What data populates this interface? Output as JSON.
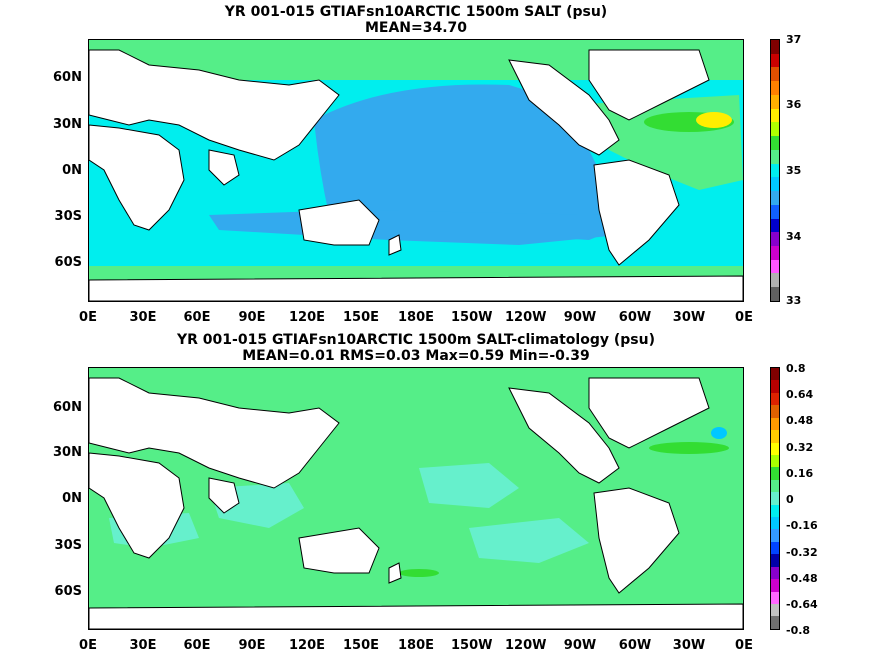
{
  "panels": [
    {
      "title_line1": "YR 001-015 GTIAFsn10ARCTIC 1500m SALT (psu)",
      "title_line2": "MEAN=34.70",
      "colorbar_labels": [
        "37",
        "36",
        "35",
        "34",
        "33"
      ],
      "colorbar_colors": [
        "#800000",
        "#cc0000",
        "#e05000",
        "#ff8000",
        "#ffb000",
        "#ffee00",
        "#b0ff00",
        "#33dd33",
        "#55ee88",
        "#00eeee",
        "#00c8ff",
        "#33aaee",
        "#1060ff",
        "#0000cc",
        "#8800cc",
        "#cc00cc",
        "#ff55ff",
        "#b0b0b0",
        "#606060"
      ]
    },
    {
      "title_line1": "YR 001-015 GTIAFsn10ARCTIC 1500m SALT-climatology (psu)",
      "title_line2": "MEAN=0.01   RMS=0.03   Max=0.59   Min=-0.39",
      "colorbar_labels": [
        "0.8",
        "0.64",
        "0.48",
        "0.32",
        "0.16",
        "0",
        "-0.16",
        "-0.32",
        "-0.48",
        "-0.64",
        "-0.8"
      ],
      "colorbar_colors": [
        "#800000",
        "#b80000",
        "#dd2200",
        "#e06000",
        "#ff9900",
        "#ffcc00",
        "#ffff00",
        "#aaff00",
        "#33dd33",
        "#55ee88",
        "#66f0cc",
        "#00eeee",
        "#00c8ff",
        "#3399ff",
        "#0044ff",
        "#0000aa",
        "#8800cc",
        "#cc00cc",
        "#ff66ff",
        "#c0c0c0",
        "#707070"
      ]
    }
  ],
  "y_axis_labels": [
    "60N",
    "30N",
    "0N",
    "30S",
    "60S"
  ],
  "x_axis_labels": [
    "0E",
    "30E",
    "60E",
    "90E",
    "120E",
    "150E",
    "180E",
    "150W",
    "120W",
    "90W",
    "60W",
    "30W",
    "0E"
  ]
}
